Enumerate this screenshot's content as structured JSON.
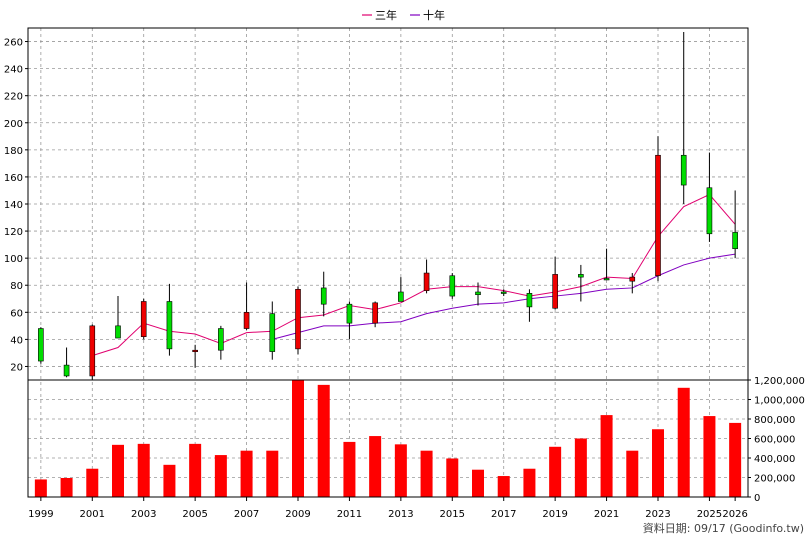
{
  "chart_data": [
    {
      "type": "candlestick",
      "legend": [
        {
          "name": "三年",
          "color": "#e0006f"
        },
        {
          "name": "十年",
          "color": "#8000c0"
        }
      ],
      "years": [
        1999,
        2000,
        2001,
        2002,
        2003,
        2004,
        2005,
        2006,
        2007,
        2008,
        2009,
        2010,
        2011,
        2012,
        2013,
        2014,
        2015,
        2016,
        2017,
        2018,
        2019,
        2020,
        2021,
        2022,
        2023,
        2024,
        2025,
        2026
      ],
      "candles": [
        {
          "open": 24,
          "close": 48,
          "high": 49,
          "low": 22
        },
        {
          "open": 13,
          "close": 21,
          "high": 34,
          "low": 12
        },
        {
          "open": 50,
          "close": 13,
          "high": 51,
          "low": 10
        },
        {
          "open": 41,
          "close": 50,
          "high": 72,
          "low": 41
        },
        {
          "open": 68,
          "close": 42,
          "high": 70,
          "low": 40
        },
        {
          "open": 33,
          "close": 68,
          "high": 81,
          "low": 28
        },
        {
          "open": 32,
          "close": 31,
          "high": 36,
          "low": 19
        },
        {
          "open": 32,
          "close": 48,
          "high": 50,
          "low": 25
        },
        {
          "open": 60,
          "close": 48,
          "high": 82,
          "low": 47
        },
        {
          "open": 31,
          "close": 59,
          "high": 68,
          "low": 25
        },
        {
          "open": 77,
          "close": 33,
          "high": 79,
          "low": 29
        },
        {
          "open": 66,
          "close": 78,
          "high": 90,
          "low": 57
        },
        {
          "open": 52,
          "close": 66,
          "high": 68,
          "low": 40
        },
        {
          "open": 67,
          "close": 52,
          "high": 68,
          "low": 49
        },
        {
          "open": 68,
          "close": 75,
          "high": 86,
          "low": 68
        },
        {
          "open": 89,
          "close": 76,
          "high": 99,
          "low": 74
        },
        {
          "open": 72,
          "close": 87,
          "high": 89,
          "low": 70
        },
        {
          "open": 73,
          "close": 75,
          "high": 82,
          "low": 65
        },
        {
          "open": 75,
          "close": 75,
          "high": 77,
          "low": 72
        },
        {
          "open": 64,
          "close": 74,
          "high": 77,
          "low": 53
        },
        {
          "open": 88,
          "close": 63,
          "high": 101,
          "low": 62
        },
        {
          "open": 86,
          "close": 88,
          "high": 95,
          "low": 68
        },
        {
          "open": 84,
          "close": 85,
          "high": 107,
          "low": 84
        },
        {
          "open": 86,
          "close": 83,
          "high": 89,
          "low": 74
        },
        {
          "open": 176,
          "close": 87,
          "high": 190,
          "low": 83
        },
        {
          "open": 154,
          "close": 176,
          "high": 267,
          "low": 140
        },
        {
          "open": 118,
          "close": 152,
          "high": 178,
          "low": 112
        },
        {
          "open": 107,
          "close": 119,
          "high": 150,
          "low": 100
        }
      ],
      "ma3": [
        null,
        null,
        28,
        34,
        52,
        46,
        44,
        37,
        45,
        46,
        56,
        58,
        65,
        62,
        67,
        77,
        79,
        79,
        76,
        72,
        75,
        79,
        86,
        85,
        116,
        138,
        147,
        125
      ],
      "ma10": [
        null,
        null,
        null,
        null,
        null,
        null,
        null,
        null,
        null,
        40,
        45,
        50,
        50,
        52,
        53,
        59,
        63,
        66,
        67,
        70,
        72,
        74,
        77,
        78,
        87,
        95,
        100,
        103
      ],
      "colors": {
        "up": "#00dd00",
        "down": "#ee0000",
        "wick": "#000000",
        "grid": "#999999"
      },
      "yaxis": {
        "min": 10,
        "max": 270,
        "ticks": [
          20,
          40,
          60,
          80,
          100,
          120,
          140,
          160,
          180,
          200,
          220,
          240,
          260
        ]
      }
    },
    {
      "type": "bar",
      "years": [
        1999,
        2000,
        2001,
        2002,
        2003,
        2004,
        2005,
        2006,
        2007,
        2008,
        2009,
        2010,
        2011,
        2012,
        2013,
        2014,
        2015,
        2016,
        2017,
        2018,
        2019,
        2020,
        2021,
        2022,
        2023,
        2024,
        2025,
        2026
      ],
      "values": [
        180000,
        195000,
        290000,
        535000,
        545000,
        330000,
        545000,
        430000,
        475000,
        475000,
        1205000,
        1150000,
        565000,
        625000,
        540000,
        475000,
        395000,
        280000,
        215000,
        290000,
        515000,
        600000,
        840000,
        475000,
        695000,
        1120000,
        830000,
        760000
      ],
      "color": "#ff0000",
      "yaxis": {
        "min": 0,
        "max": 1200000,
        "ticks": [
          "0",
          "200,000",
          "400,000",
          "600,000",
          "800,000",
          "1,000,000",
          "1,200,000"
        ]
      }
    }
  ],
  "xaxis_labels": [
    "1999",
    "2001",
    "2003",
    "2005",
    "2007",
    "2009",
    "2011",
    "2013",
    "2015",
    "2017",
    "2019",
    "2021",
    "2023",
    "2025",
    "2026"
  ],
  "footer": "資料日期: 09/17  (Goodinfo.tw)"
}
